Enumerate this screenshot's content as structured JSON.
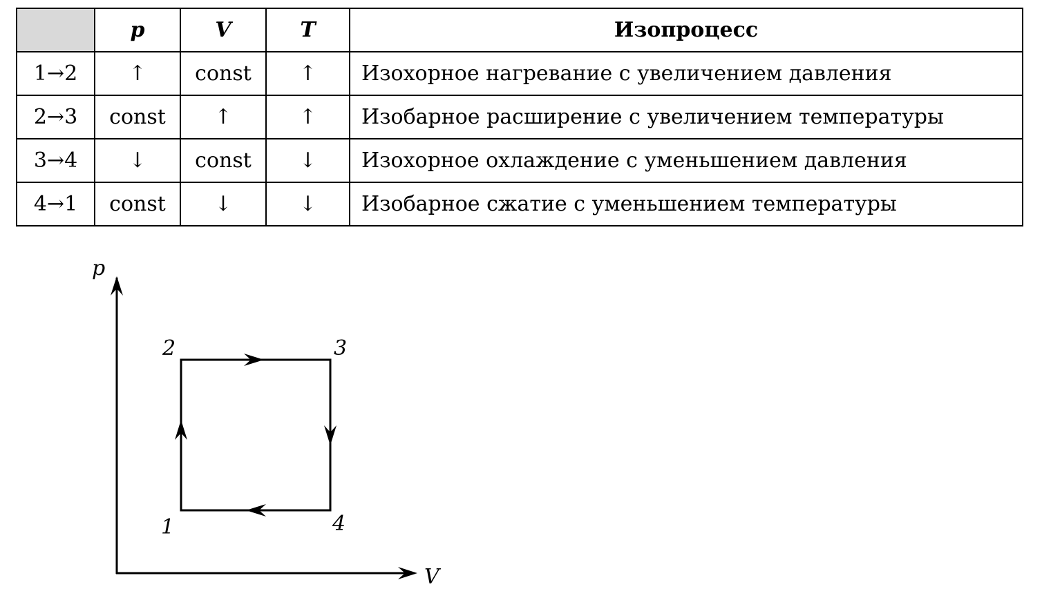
{
  "table": {
    "headers": [
      "",
      "p",
      "V",
      "T",
      "Изопроцесс"
    ],
    "rows": [
      {
        "process": "1→2",
        "p": "↑",
        "V": "const",
        "T": "↑",
        "description": "Изохорное нагревание с увеличением давления"
      },
      {
        "process": "2→3",
        "p": "const",
        "V": "↑",
        "T": "↑",
        "description": "Изобарное расширение с увеличением температуры"
      },
      {
        "process": "3→4",
        "p": "↓",
        "V": "const",
        "T": "↓",
        "description": "Изохорное охлаждение с уменьшением давления"
      },
      {
        "process": "4→1",
        "p": "const",
        "V": "↓",
        "T": "↓",
        "description": "Изобарное сжатие с уменьшением температуры"
      }
    ],
    "corner_color": "#d9d9d9"
  },
  "diagram": {
    "y_axis_label": "p",
    "x_axis_label": "V",
    "points": [
      "1",
      "2",
      "3",
      "4"
    ]
  }
}
